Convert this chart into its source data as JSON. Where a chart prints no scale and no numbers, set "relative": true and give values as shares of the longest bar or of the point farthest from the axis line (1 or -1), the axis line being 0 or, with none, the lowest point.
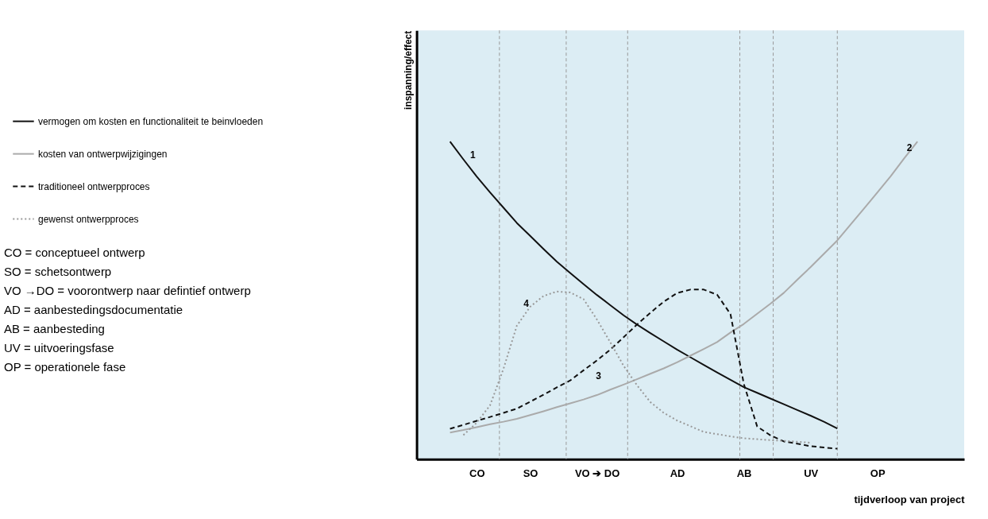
{
  "chart_data": {
    "type": "line",
    "relative": true,
    "xlabel": "tijdverloop van project",
    "ylabel": "inspanning/effect",
    "categories": [
      null,
      null,
      null,
      null,
      "CO",
      null,
      null,
      null,
      "SO",
      null,
      null,
      null,
      null,
      "VO ➔ DO",
      null,
      null,
      null,
      null,
      null,
      "AD",
      null,
      null,
      null,
      null,
      "AB",
      null,
      null,
      null,
      null,
      "UV",
      null,
      null,
      null,
      null,
      "OP",
      null,
      null,
      null,
      null,
      null,
      null
    ],
    "series": [
      {
        "name": "vermogen om kosten en functionaliteit te beinvloeden",
        "color": "#111111",
        "line_style": "solid",
        "values": [
          null,
          null,
          1.0,
          0.944,
          0.89,
          0.84,
          0.792,
          0.744,
          0.703,
          0.662,
          0.622,
          0.586,
          0.551,
          0.517,
          0.485,
          0.453,
          0.424,
          0.397,
          0.371,
          0.345,
          0.321,
          0.297,
          0.273,
          0.25,
          0.227,
          0.209,
          0.191,
          0.173,
          0.155,
          0.137,
          0.118,
          0.097,
          null,
          null,
          null,
          null,
          null,
          null,
          null,
          null,
          null
        ]
      },
      {
        "name": "kosten van ontwerpwijzigingen",
        "color": "#aaaaaa",
        "line_style": "solid",
        "values": [
          null,
          null,
          0.084,
          0.092,
          0.101,
          0.11,
          0.118,
          0.127,
          0.139,
          0.151,
          0.164,
          0.176,
          0.188,
          0.202,
          0.219,
          0.235,
          0.252,
          0.269,
          0.286,
          0.305,
          0.326,
          0.347,
          0.369,
          0.399,
          0.426,
          0.458,
          0.49,
          0.524,
          0.565,
          0.605,
          0.647,
          0.689,
          0.739,
          0.789,
          0.84,
          0.891,
          0.947,
          1.0,
          null,
          null,
          null
        ]
      },
      {
        "name": "traditioneel ontwerpproces",
        "color": "#111111",
        "line_style": "dashed",
        "values": [
          null,
          null,
          0.096,
          0.108,
          0.121,
          0.133,
          0.146,
          0.159,
          0.181,
          0.203,
          0.226,
          0.248,
          0.28,
          0.311,
          0.345,
          0.384,
          0.424,
          0.461,
          0.496,
          0.523,
          0.534,
          0.534,
          0.518,
          0.457,
          0.237,
          0.103,
          0.075,
          0.056,
          0.049,
          0.041,
          0.037,
          0.033,
          null,
          null,
          null,
          null,
          null,
          null,
          null,
          null,
          null
        ]
      },
      {
        "name": "gewenst ontwerpproces",
        "color": "#999999",
        "line_style": "dotted",
        "values": [
          null,
          null,
          null,
          0.076,
          0.115,
          0.17,
          0.284,
          0.42,
          0.48,
          0.514,
          0.528,
          0.525,
          0.504,
          0.44,
          0.368,
          0.294,
          0.233,
          0.18,
          0.146,
          0.122,
          0.104,
          0.086,
          0.079,
          0.072,
          0.066,
          0.063,
          0.06,
          0.058,
          0.055,
          0.052,
          null,
          null,
          null,
          null,
          null,
          null,
          null,
          null,
          null,
          null,
          null
        ]
      }
    ],
    "annotations": [
      "1",
      "2",
      "3",
      "4",
      "CO = conceptueel ontwerp",
      "SO = schetsontwerp",
      "VO →DO = voorontwerp naar defintief ontwerp",
      "AD = aanbestedingsdocumentatie",
      "AB = aanbesteding",
      "UV = uitvoeringsfase",
      "OP = operationele fase"
    ],
    "legend": "left",
    "marker": "none"
  }
}
